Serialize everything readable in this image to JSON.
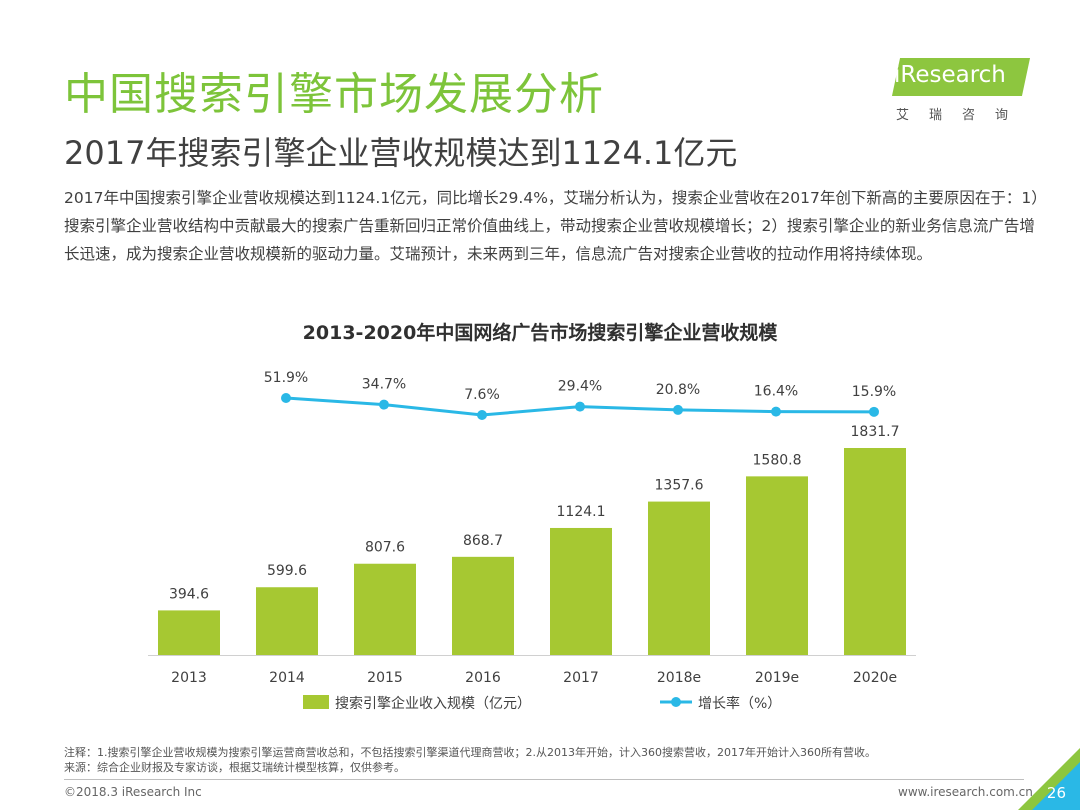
{
  "header": {
    "title": "中国搜索引擎市场发展分析",
    "subtitle": "2017年搜索引擎企业营收规模达到1124.1亿元"
  },
  "body": {
    "paragraph": "2017年中国搜索引擎企业营收规模达到1124.1亿元，同比增长29.4%，艾瑞分析认为，搜索企业营收在2017年创下新高的主要原因在于：1）搜索引擎企业营收结构中贡献最大的搜索广告重新回归正常价值曲线上，带动搜索企业营收规模增长；2）搜索引擎企业的新业务信息流广告增长迅速，成为搜索企业营收规模新的驱动力量。艾瑞预计，未来两到三年，信息流广告对搜索企业营收的拉动作用将持续体现。"
  },
  "logo": {
    "brand": "iResearch",
    "brand_cn": "艾瑞咨询"
  },
  "chart_data": {
    "type": "bar",
    "title": "2013-2020年中国网络广告市场搜索引擎企业营收规模",
    "categories": [
      "2013",
      "2014",
      "2015",
      "2016",
      "2017",
      "2018e",
      "2019e",
      "2020e"
    ],
    "series": [
      {
        "name": "搜索引擎企业收入规模（亿元）",
        "type": "bar",
        "values": [
          394.6,
          599.6,
          807.6,
          868.7,
          1124.1,
          1357.6,
          1580.8,
          1831.7
        ],
        "labels": [
          "394.6",
          "599.6",
          "807.6",
          "868.7",
          "1124.1",
          "1357.6",
          "1580.8",
          "1831.7"
        ],
        "color": "#a6c832"
      },
      {
        "name": "增长率（%）",
        "type": "line",
        "values": [
          51.9,
          34.7,
          7.6,
          29.4,
          20.8,
          16.4,
          15.9
        ],
        "labels": [
          "51.9%",
          "34.7%",
          "7.6%",
          "29.4%",
          "20.8%",
          "16.4%",
          "15.9%"
        ],
        "x": [
          "2014",
          "2015",
          "2016",
          "2017",
          "2018e",
          "2019e",
          "2020e"
        ],
        "color": "#2ab8e6"
      }
    ],
    "ylim": [
      0,
      1900
    ],
    "line_ylim": [
      0,
      60
    ]
  },
  "footer": {
    "note": "注释：1.搜索引擎企业营收规模为搜索引擎运营商营收总和，不包括搜索引擎渠道代理商营收；2.从2013年开始，计入360搜索营收，2017年开始计入360所有营收。",
    "source": "来源：综合企业财报及专家访谈，根据艾瑞统计模型核算，仅供参考。",
    "copyright": "©2018.3 iResearch Inc",
    "url": "www.iresearch.com.cn",
    "page": "26"
  },
  "colors": {
    "title_green": "#7dc43a",
    "bar": "#a6c832",
    "line": "#2ab8e6"
  }
}
